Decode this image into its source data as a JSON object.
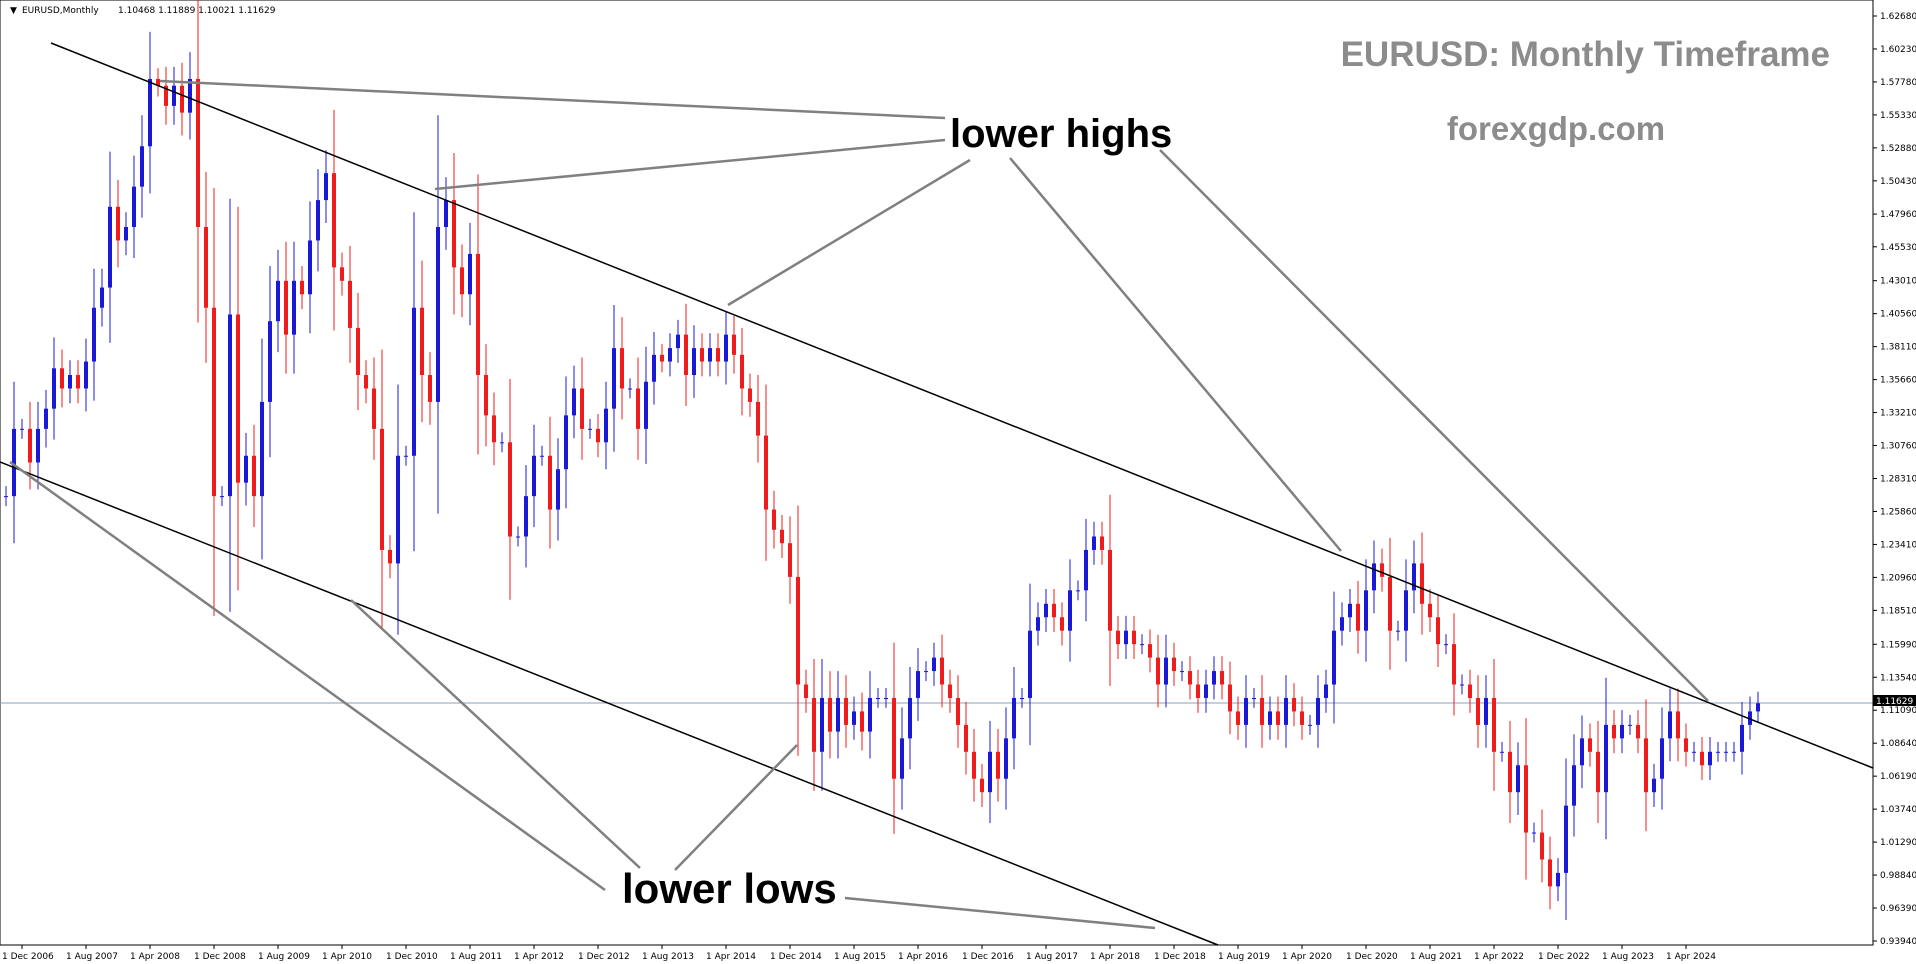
{
  "header": {
    "symbol_label": "EURUSD,Monthly",
    "ohlc": "1.10468 1.11889 1.10021 1.11629"
  },
  "watermark": {
    "title": "EURUSD: Monthly Timeframe",
    "site": "forexgdp.com"
  },
  "annotations": {
    "lower_highs": "lower highs",
    "lower_lows": "lower lows"
  },
  "current_price": "1.11629",
  "colors": {
    "bull": "#1a1ad6",
    "bear": "#ee1c1c",
    "trendline": "#000000",
    "pointer": "#808080",
    "watermark": "#8c8c8c",
    "price_line": "#8ea2b4"
  },
  "chart_data": {
    "type": "candlestick",
    "title": "EURUSD: Monthly Timeframe",
    "timeframe": "Monthly",
    "x_tick_labels": [
      "1 Dec 2006",
      "1 Aug 2007",
      "1 Apr 2008",
      "1 Dec 2008",
      "1 Aug 2009",
      "1 Apr 2010",
      "1 Dec 2010",
      "1 Aug 2011",
      "1 Apr 2012",
      "1 Dec 2012",
      "1 Aug 2013",
      "1 Apr 2014",
      "1 Dec 2014",
      "1 Aug 2015",
      "1 Apr 2016",
      "1 Dec 2016",
      "1 Aug 2017",
      "1 Apr 2018",
      "1 Dec 2018",
      "1 Aug 2019",
      "1 Apr 2020",
      "1 Dec 2020",
      "1 Aug 2021",
      "1 Apr 2022",
      "1 Dec 2022",
      "1 Aug 2023",
      "1 Apr 2024"
    ],
    "y_tick_labels": [
      "1.62680",
      "1.60230",
      "1.57780",
      "1.55330",
      "1.52880",
      "1.50430",
      "1.47960",
      "1.45530",
      "1.43010",
      "1.40560",
      "1.38110",
      "1.35660",
      "1.33210",
      "1.30760",
      "1.28310",
      "1.25860",
      "1.23410",
      "1.20960",
      "1.18510",
      "1.15990",
      "1.13540",
      "1.11090",
      "1.08640",
      "1.06190",
      "1.03740",
      "1.01290",
      "0.98840",
      "0.96390",
      "0.93940"
    ],
    "ylim": [
      0.9394,
      1.6268
    ],
    "monthly_close_start": "2006-10",
    "monthly_close": [
      1.27,
      1.32,
      1.32,
      1.295,
      1.32,
      1.335,
      1.365,
      1.35,
      1.36,
      1.35,
      1.37,
      1.41,
      1.425,
      1.485,
      1.46,
      1.47,
      1.5,
      1.53,
      1.58,
      1.575,
      1.56,
      1.575,
      1.555,
      1.58,
      1.47,
      1.41,
      1.27,
      1.27,
      1.405,
      1.28,
      1.3,
      1.27,
      1.34,
      1.4,
      1.43,
      1.39,
      1.43,
      1.42,
      1.46,
      1.49,
      1.51,
      1.44,
      1.43,
      1.395,
      1.36,
      1.35,
      1.32,
      1.23,
      1.22,
      1.3,
      1.3,
      1.41,
      1.36,
      1.34,
      1.47,
      1.49,
      1.44,
      1.42,
      1.45,
      1.36,
      1.33,
      1.31,
      1.31,
      1.24,
      1.24,
      1.27,
      1.3,
      1.3,
      1.26,
      1.29,
      1.33,
      1.35,
      1.32,
      1.32,
      1.31,
      1.335,
      1.38,
      1.35,
      1.35,
      1.32,
      1.355,
      1.375,
      1.37,
      1.38,
      1.39,
      1.36,
      1.38,
      1.37,
      1.38,
      1.37,
      1.39,
      1.375,
      1.35,
      1.34,
      1.315,
      1.26,
      1.245,
      1.235,
      1.21,
      1.13,
      1.12,
      1.08,
      1.12,
      1.095,
      1.12,
      1.1,
      1.11,
      1.095,
      1.12,
      1.12,
      1.12,
      1.06,
      1.09,
      1.12,
      1.14,
      1.14,
      1.15,
      1.13,
      1.12,
      1.1,
      1.08,
      1.06,
      1.05,
      1.08,
      1.06,
      1.09,
      1.12,
      1.12,
      1.17,
      1.18,
      1.19,
      1.18,
      1.17,
      1.2,
      1.2,
      1.23,
      1.24,
      1.23,
      1.17,
      1.16,
      1.17,
      1.16,
      1.16,
      1.15,
      1.13,
      1.15,
      1.14,
      1.14,
      1.13,
      1.12,
      1.13,
      1.14,
      1.13,
      1.11,
      1.1,
      1.12,
      1.12,
      1.1,
      1.11,
      1.1,
      1.12,
      1.11,
      1.1,
      1.1,
      1.12,
      1.13,
      1.17,
      1.18,
      1.19,
      1.17,
      1.2,
      1.22,
      1.21,
      1.17,
      1.17,
      1.2,
      1.22,
      1.19,
      1.18,
      1.16,
      1.16,
      1.13,
      1.13,
      1.12,
      1.1,
      1.12,
      1.08,
      1.08,
      1.05,
      1.07,
      1.02,
      1.02,
      1.0,
      0.98,
      0.99,
      1.04,
      1.07,
      1.09,
      1.08,
      1.05,
      1.1,
      1.09,
      1.1,
      1.1,
      1.09,
      1.05,
      1.06,
      1.09,
      1.11,
      1.09,
      1.08,
      1.08,
      1.07,
      1.08,
      1.08,
      1.08,
      1.08,
      1.1,
      1.11,
      1.116
    ]
  }
}
